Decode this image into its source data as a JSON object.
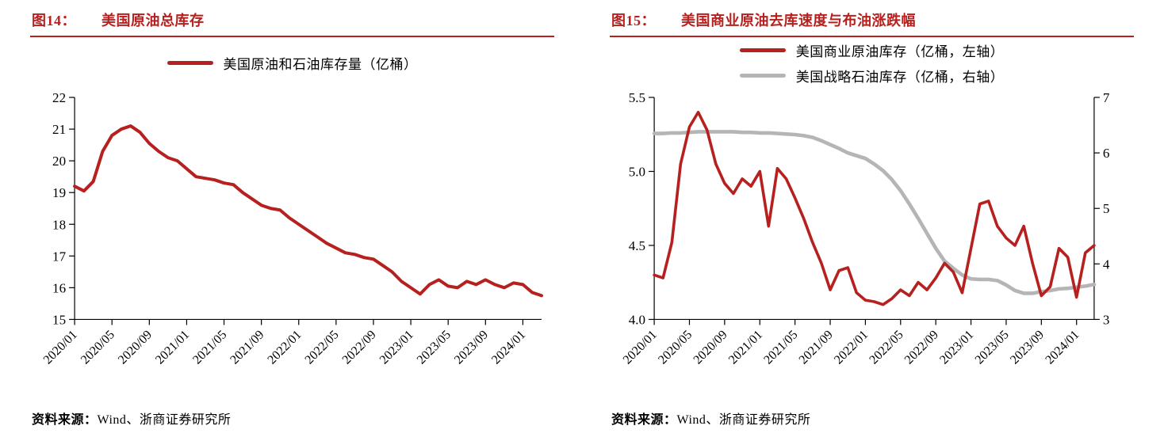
{
  "colors": {
    "accent_red": "#b6201e",
    "series_gray": "#b5b5b5",
    "axis_black": "#000000"
  },
  "figure14": {
    "tag": "图14：",
    "title": "美国原油总库存",
    "legend": [
      {
        "label": "美国原油和石油库存量（亿桶）",
        "color": "#b6201e"
      }
    ],
    "source_label": "资料来源：",
    "source_text": "Wind、浙商证券研究所"
  },
  "figure15": {
    "tag": "图15：",
    "title": "美国商业原油去库速度与布油涨跌幅",
    "legend": [
      {
        "label": "美国商业原油库存（亿桶，左轴）",
        "color": "#b6201e"
      },
      {
        "label": "美国战略石油库存（亿桶，右轴）",
        "color": "#b5b5b5"
      }
    ],
    "source_label": "资料来源：",
    "source_text": "Wind、浙商证券研究所"
  },
  "chart_data": [
    {
      "id": "fig14",
      "type": "line",
      "title": "美国原油总库存",
      "x_start": "2020/01",
      "x_frequency": "monthly",
      "x_tick_step": 4,
      "x_tick_labels": [
        "2020/01",
        "2020/05",
        "2020/09",
        "2021/01",
        "2021/05",
        "2021/09",
        "2022/01",
        "2022/05",
        "2022/09",
        "2023/01",
        "2023/05",
        "2023/09",
        "2024/01"
      ],
      "y_axis_left": {
        "min": 15,
        "max": 22,
        "ticks": [
          15,
          16,
          17,
          18,
          19,
          20,
          21,
          22
        ],
        "tick_labels": [
          "15",
          "16",
          "17",
          "18",
          "19",
          "20",
          "21",
          "22"
        ]
      },
      "grid": false,
      "legend_position": "top-center",
      "series": [
        {
          "id": "us-crude-and-petroleum-stocks",
          "name": "美国原油和石油库存量（亿桶）",
          "axis": "left",
          "color": "#b6201e",
          "stroke_width": 4,
          "values": [
            19.2,
            19.05,
            19.35,
            20.3,
            20.8,
            21.0,
            21.1,
            20.9,
            20.55,
            20.3,
            20.1,
            20.0,
            19.75,
            19.5,
            19.45,
            19.4,
            19.3,
            19.25,
            19.0,
            18.8,
            18.6,
            18.5,
            18.45,
            18.2,
            18.0,
            17.8,
            17.6,
            17.4,
            17.25,
            17.1,
            17.05,
            16.95,
            16.9,
            16.7,
            16.5,
            16.2,
            16.0,
            15.8,
            16.1,
            16.25,
            16.05,
            16.0,
            16.2,
            16.1,
            16.25,
            16.1,
            16.0,
            16.15,
            16.1,
            15.85,
            15.75
          ]
        }
      ]
    },
    {
      "id": "fig15",
      "type": "line",
      "title": "美国商业原油去库速度与布油涨跌幅",
      "x_start": "2020/01",
      "x_frequency": "monthly",
      "x_tick_step": 4,
      "x_tick_labels": [
        "2020/01",
        "2020/05",
        "2020/09",
        "2021/01",
        "2021/05",
        "2021/09",
        "2022/01",
        "2022/05",
        "2022/09",
        "2023/01",
        "2023/05",
        "2023/09",
        "2024/01"
      ],
      "y_axis_left": {
        "min": 4.0,
        "max": 5.5,
        "ticks": [
          4.0,
          4.5,
          5.0,
          5.5
        ],
        "tick_labels": [
          "4.0",
          "4.5",
          "5.0",
          "5.5"
        ]
      },
      "y_axis_right": {
        "min": 3,
        "max": 7,
        "ticks": [
          3,
          4,
          5,
          6,
          7
        ],
        "tick_labels": [
          "3",
          "4",
          "5",
          "6",
          "7"
        ]
      },
      "grid": false,
      "legend_position": "top-center",
      "series": [
        {
          "id": "us-commercial-crude-stocks",
          "name": "美国商业原油库存（亿桶，左轴）",
          "axis": "left",
          "color": "#b6201e",
          "stroke_width": 3.6,
          "values": [
            4.3,
            4.28,
            4.52,
            5.05,
            5.3,
            5.4,
            5.28,
            5.05,
            4.92,
            4.85,
            4.95,
            4.9,
            5.0,
            4.63,
            5.02,
            4.95,
            4.82,
            4.68,
            4.52,
            4.38,
            4.2,
            4.33,
            4.35,
            4.18,
            4.13,
            4.12,
            4.1,
            4.14,
            4.2,
            4.16,
            4.25,
            4.2,
            4.28,
            4.38,
            4.32,
            4.18,
            4.48,
            4.78,
            4.8,
            4.63,
            4.55,
            4.5,
            4.63,
            4.38,
            4.16,
            4.22,
            4.48,
            4.42,
            4.15,
            4.45,
            4.5
          ]
        },
        {
          "id": "us-strategic-petroleum-reserve",
          "name": "美国战略石油库存（亿桶，右轴）",
          "axis": "right",
          "color": "#b5b5b5",
          "stroke_width": 4.6,
          "values": [
            6.35,
            6.35,
            6.36,
            6.36,
            6.37,
            6.38,
            6.38,
            6.38,
            6.38,
            6.38,
            6.37,
            6.37,
            6.36,
            6.36,
            6.35,
            6.34,
            6.33,
            6.31,
            6.28,
            6.22,
            6.15,
            6.08,
            6.0,
            5.95,
            5.9,
            5.8,
            5.68,
            5.52,
            5.32,
            5.08,
            4.82,
            4.55,
            4.28,
            4.05,
            3.92,
            3.8,
            3.73,
            3.72,
            3.72,
            3.7,
            3.62,
            3.52,
            3.47,
            3.47,
            3.5,
            3.52,
            3.55,
            3.56,
            3.58,
            3.6,
            3.63
          ]
        }
      ]
    }
  ]
}
